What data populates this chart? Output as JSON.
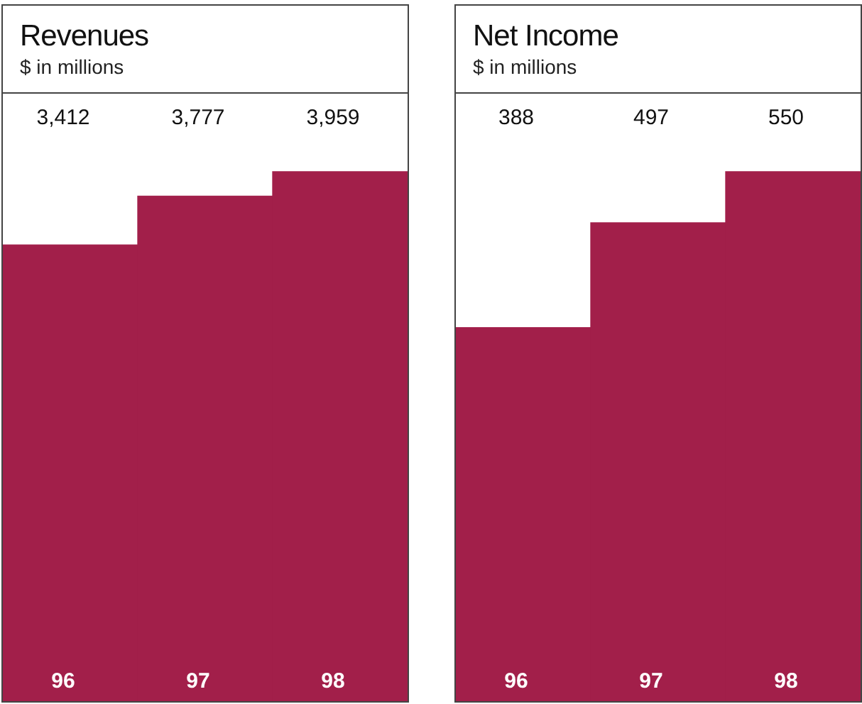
{
  "chart_data": [
    {
      "type": "bar",
      "title": "Revenues",
      "subtitle": "$ in millions",
      "categories": [
        "96",
        "97",
        "98"
      ],
      "values": [
        3412,
        3777,
        3959
      ],
      "value_labels": [
        "3,412",
        "3,777",
        "3,959"
      ],
      "color": "#a21f4a"
    },
    {
      "type": "bar",
      "title": "Net Income",
      "subtitle": "$ in millions",
      "categories": [
        "96",
        "97",
        "98"
      ],
      "values": [
        388,
        497,
        550
      ],
      "data_labels": true,
      "color": "#a21f4a"
    }
  ]
}
